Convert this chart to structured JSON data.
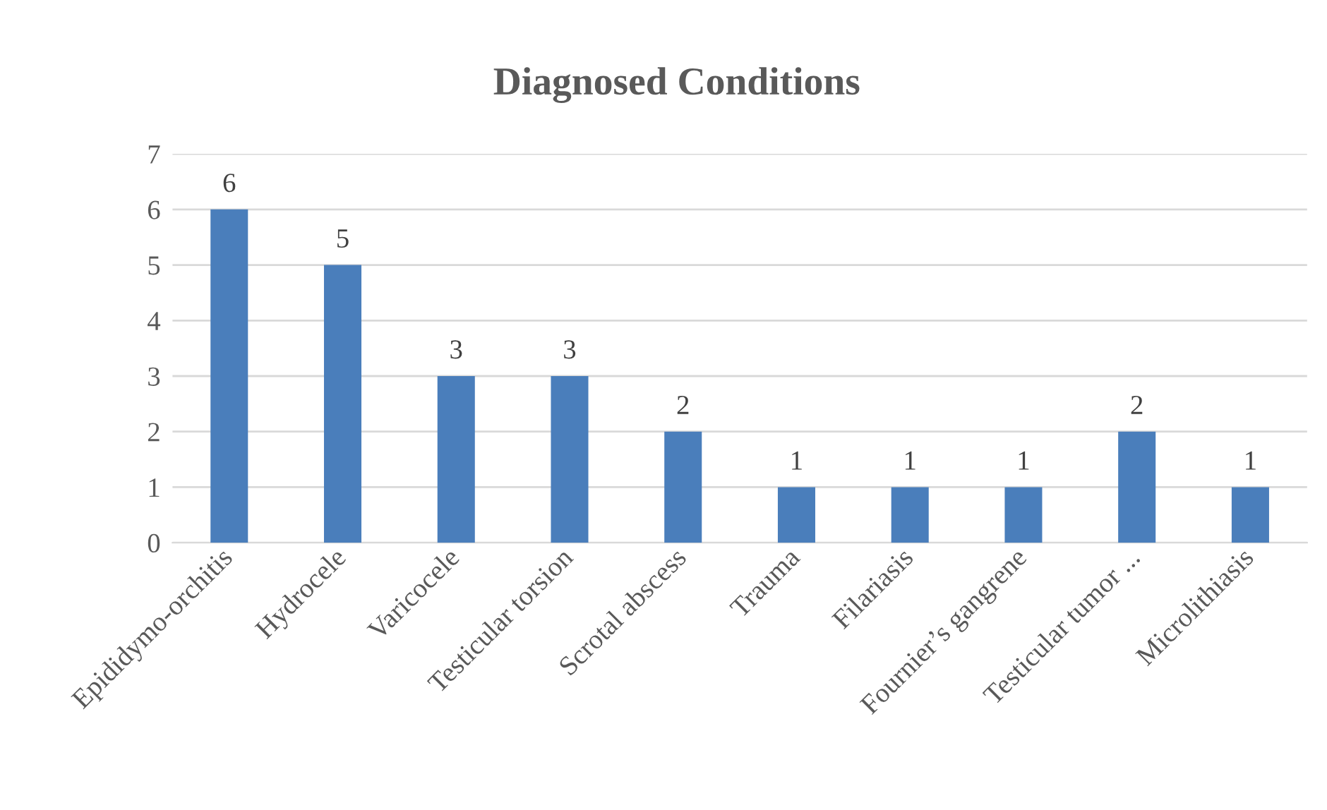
{
  "chart_data": {
    "type": "bar",
    "title": "Diagnosed Conditions",
    "categories": [
      "Epididymo-orchitis",
      "Hydrocele",
      "Varicocele",
      "Testicular torsion",
      "Scrotal abscess",
      "Trauma",
      "Filariasis",
      "Fournier’s gangrene",
      "Testicular tumor ...",
      "Microlithiasis"
    ],
    "values": [
      6,
      5,
      3,
      3,
      2,
      1,
      1,
      1,
      2,
      1
    ],
    "color": "#4a7ebb",
    "ylim": [
      0,
      7
    ],
    "yticks": [
      0,
      1,
      2,
      3,
      4,
      5,
      6,
      7
    ],
    "grid": "y",
    "data_labels": true
  }
}
